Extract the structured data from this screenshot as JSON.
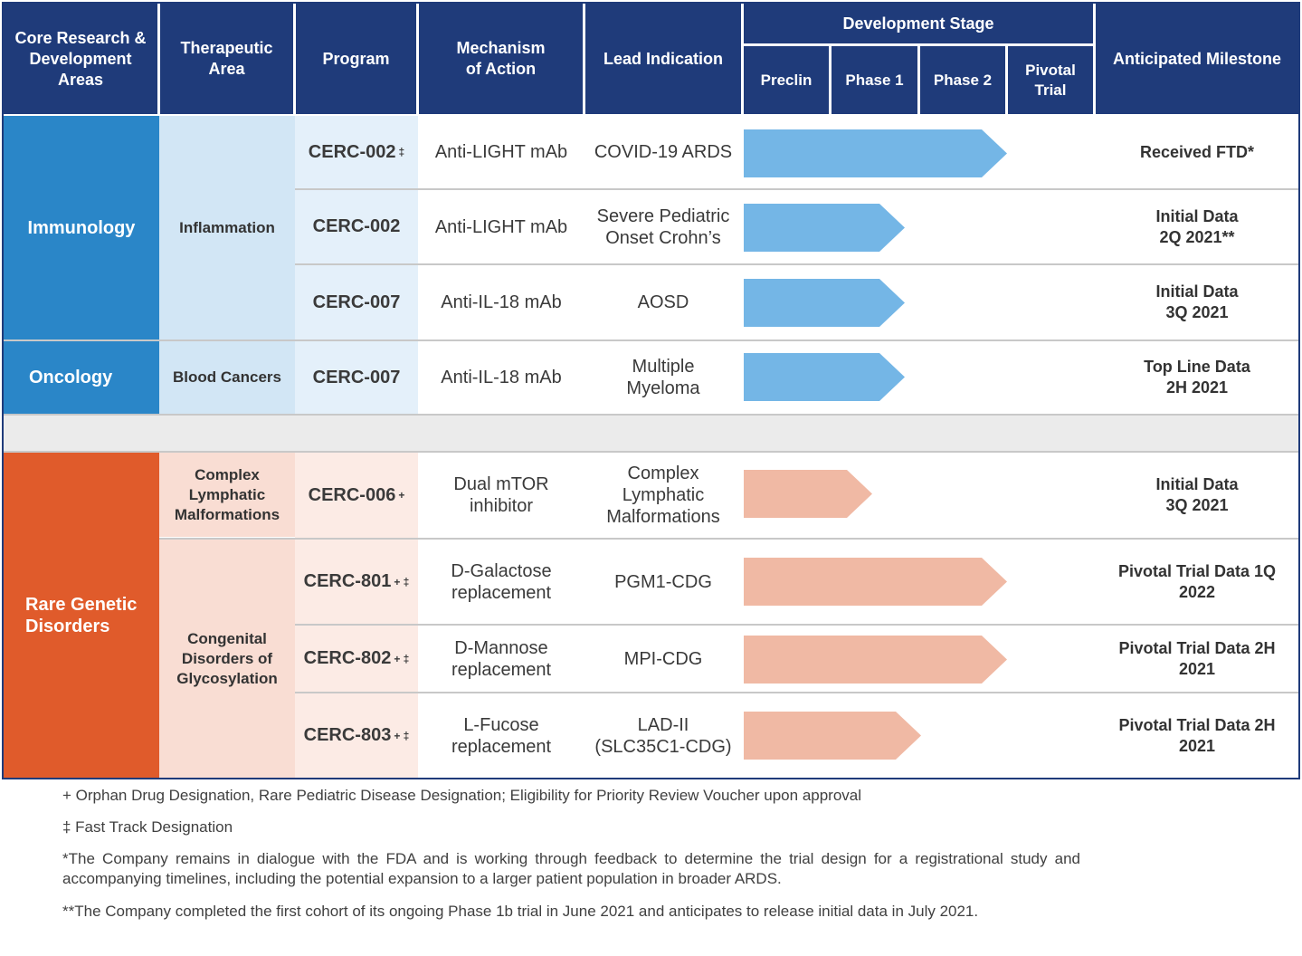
{
  "header": {
    "core_areas": "Core Research & Development Areas",
    "therapeutic_area": "Therapeutic Area",
    "program": "Program",
    "mechanism": "Mechanism of Action",
    "lead_indication": "Lead Indication",
    "development_stage": "Development Stage",
    "stages": [
      "Preclin",
      "Phase 1",
      "Phase 2",
      "Pivotal Trial"
    ],
    "milestone": "Anticipated Milestone"
  },
  "areas": {
    "immunology": "Immunology",
    "oncology": "Oncology",
    "rare": "Rare Genetic Disorders"
  },
  "subareas": {
    "inflammation": "Inflammation",
    "blood_cancers": "Blood Cancers",
    "clm": "Complex Lymphatic Malformations",
    "cdg": "Congenital Disorders of Glycosylation"
  },
  "colors": {
    "header": "#1f3b7a",
    "immunology": "#2a86c8",
    "oncology": "#2a86c8",
    "rare": "#e05b2b",
    "blue_arrow": "#74b6e6",
    "salmon_arrow": "#f0b9a4",
    "blue_light": "#d2e6f5",
    "blue_lighter": "#e4f0fa",
    "salmon_light": "#f9ddd3",
    "salmon_lighter": "#fcebe5"
  },
  "programs": [
    {
      "name": "CERC-002",
      "mark": "‡",
      "mechanism": "Anti-LIGHT mAb",
      "indication": "COVID-19 ARDS",
      "stage_progress": 3,
      "milestone": "Received FTD*"
    },
    {
      "name": "CERC-002",
      "mark": "",
      "mechanism": "Anti-LIGHT mAb",
      "indication": "Severe Pediatric Onset Crohn’s",
      "stage_progress": 2,
      "milestone": "Initial Data 2Q 2021**"
    },
    {
      "name": "CERC-007",
      "mark": "",
      "mechanism": "Anti-IL-18 mAb",
      "indication": "AOSD",
      "stage_progress": 2,
      "milestone": "Initial Data 3Q 2021"
    },
    {
      "name": "CERC-007",
      "mark": "",
      "mechanism": "Anti-IL-18 mAb",
      "indication": "Multiple Myeloma",
      "stage_progress": 2,
      "milestone": "Top Line Data 2H 2021"
    },
    {
      "name": "CERC-006",
      "mark": "+",
      "mechanism": "Dual mTOR inhibitor",
      "indication": "Complex Lymphatic Malformations",
      "stage_progress": 1.5,
      "milestone": "Initial Data 3Q 2021"
    },
    {
      "name": "CERC-801",
      "mark": "+ ‡",
      "mechanism": "D-Galactose replacement",
      "indication": "PGM1-CDG",
      "stage_progress": 3,
      "milestone": "Pivotal Trial Data 1Q 2022"
    },
    {
      "name": "CERC-802",
      "mark": "+ ‡",
      "mechanism": "D-Mannose replacement",
      "indication": "MPI-CDG",
      "stage_progress": 3,
      "milestone": "Pivotal Trial Data 2H 2021"
    },
    {
      "name": "CERC-803",
      "mark": "+ ‡",
      "mechanism": "L-Fucose replacement",
      "indication": "LAD-II (SLC35C1-CDG)",
      "stage_progress": 2.2,
      "milestone": "Pivotal Trial Data 2H 2021"
    }
  ],
  "footnotes": [
    "+ Orphan Drug Designation, Rare Pediatric Disease Designation; Eligibility for Priority Review Voucher upon approval",
    "‡ Fast Track Designation",
    "*The Company remains in dialogue with the FDA and is working through feedback to determine the trial design for a registrational study and accompanying timelines, including the potential expansion to a larger patient population in broader ARDS.",
    "**The Company completed the first cohort of its ongoing Phase 1b trial in June 2021 and anticipates to release initial data in July 2021."
  ]
}
